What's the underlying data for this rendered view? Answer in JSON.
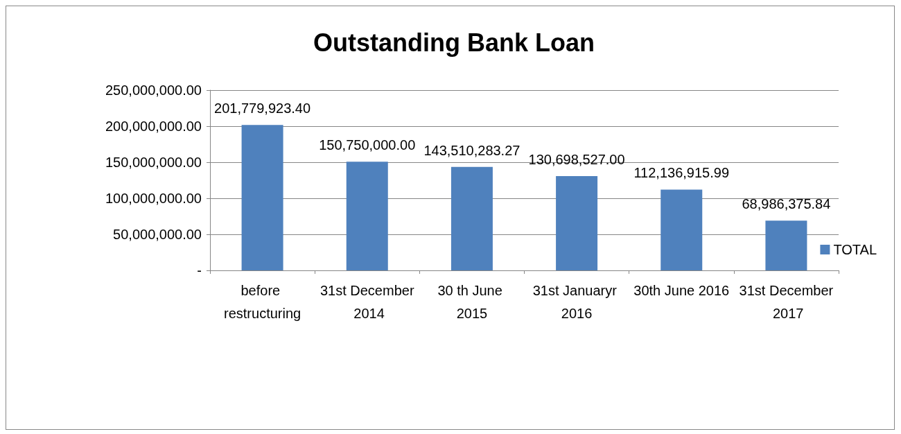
{
  "chart_data": {
    "type": "bar",
    "title": "Outstanding Bank Loan",
    "categories": [
      "before restructuring",
      "31st December 2014",
      "30 th June 2015",
      "31st Januaryr 2016",
      "30th June 2016",
      "31st December 2017"
    ],
    "series": [
      {
        "name": "TOTAL",
        "color": "#4f81bd",
        "values": [
          201779923.4,
          150750000.0,
          143510283.27,
          130698527.0,
          112136915.99,
          68986375.84
        ],
        "value_labels": [
          "201,779,923.40",
          "150,750,000.00",
          "143,510,283.27",
          "130,698,527.00",
          "112,136,915.99",
          "68,986,375.84"
        ]
      }
    ],
    "ylim": [
      0,
      250000000
    ],
    "yticks": [
      {
        "value": 0,
        "label": "-"
      },
      {
        "value": 50000000,
        "label": "50,000,000.00"
      },
      {
        "value": 100000000,
        "label": "100,000,000.00"
      },
      {
        "value": 150000000,
        "label": "150,000,000.00"
      },
      {
        "value": 200000000,
        "label": "200,000,000.00"
      },
      {
        "value": 250000000,
        "label": "250,000,000.00"
      }
    ],
    "grid": "y",
    "legend": "right"
  }
}
